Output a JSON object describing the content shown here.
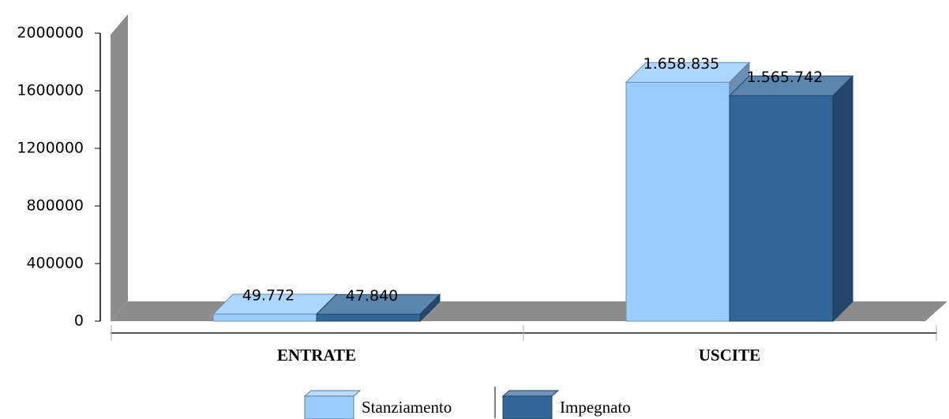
{
  "chart_data": {
    "type": "bar3d",
    "categories": [
      "ENTRATE",
      "USCITE"
    ],
    "series": [
      {
        "name": "Stanziamento",
        "color": "#99ccff",
        "values": [
          49772,
          1658835
        ],
        "value_labels": [
          "49.772",
          "1.658.835"
        ]
      },
      {
        "name": "Impegnato",
        "color": "#336699",
        "values": [
          47840,
          1565742
        ],
        "value_labels": [
          "47.840",
          "1.565.742"
        ]
      }
    ],
    "ylim": [
      0,
      2000000
    ],
    "yticks": [
      0,
      400000,
      800000,
      1200000,
      1600000,
      2000000
    ]
  }
}
